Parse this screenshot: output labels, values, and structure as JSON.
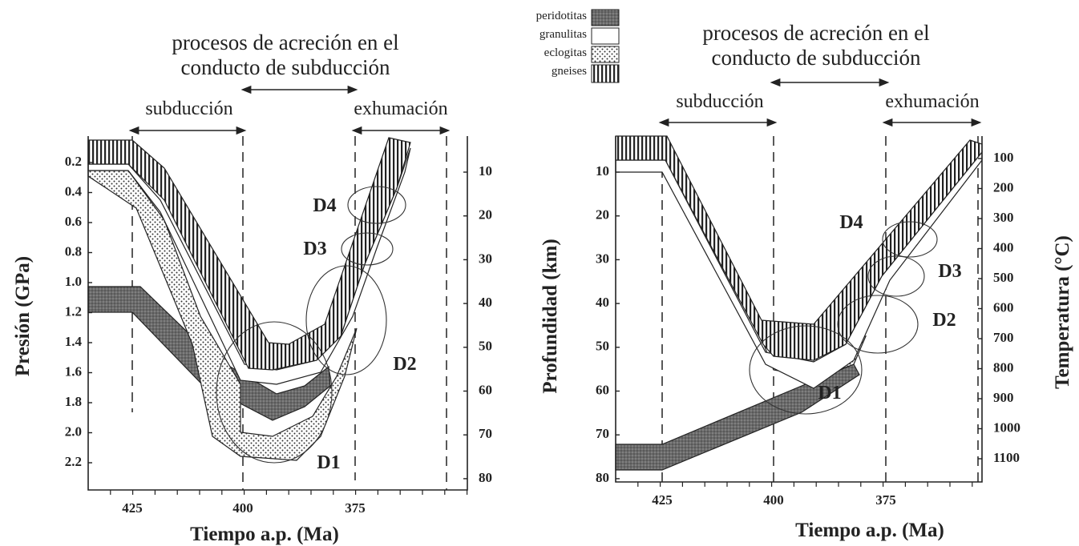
{
  "legend": {
    "items": [
      "peridotitas",
      "granulitas",
      "eclogitas",
      "gneises"
    ]
  },
  "panels": [
    {
      "header": [
        "procesos de acreción en el",
        "conducto de subducción"
      ],
      "subduction_label": "subducción",
      "exhumation_label": "exhumación",
      "y_label": "Presión (GPa)",
      "x_label": "Tiempo a.p. (Ma)",
      "y_ticks": [
        "0.2",
        "0.4",
        "0.6",
        "0.8",
        "1.0",
        "1.2",
        "1.4",
        "1.6",
        "1.8",
        "2.0",
        "2.2"
      ],
      "y2_ticks": [
        "10",
        "20",
        "30",
        "40",
        "50",
        "60",
        "70",
        "80"
      ],
      "x_ticks": [
        "425",
        "400",
        "375"
      ],
      "stages": [
        "D4",
        "D3",
        "D2",
        "D1"
      ]
    },
    {
      "header": [
        "procesos de acreción en el",
        "conducto de subducción"
      ],
      "subduction_label": "subducción",
      "exhumation_label": "exhumación",
      "y_label": "Profundidad (km)",
      "y2_label": "Temperatura (°C)",
      "x_label": "Tiempo a.p. (Ma)",
      "y_ticks": [
        "10",
        "20",
        "30",
        "40",
        "50",
        "60",
        "70",
        "80"
      ],
      "y2_ticks": [
        "100",
        "200",
        "300",
        "400",
        "500",
        "600",
        "700",
        "800",
        "900",
        "1000",
        "1100"
      ],
      "x_ticks": [
        "425",
        "400",
        "375"
      ],
      "stages": [
        "D4",
        "D3",
        "D2",
        "D1"
      ]
    }
  ]
}
